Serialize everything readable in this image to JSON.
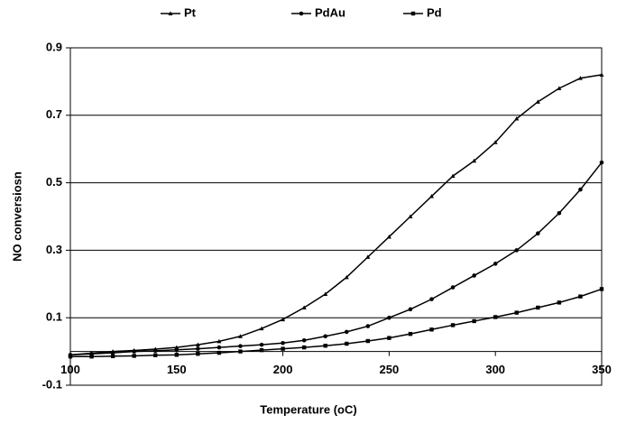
{
  "chart_data": {
    "type": "line",
    "xlabel": "Temperature (oC)",
    "ylabel": "NO conversiosn",
    "x": [
      100,
      110,
      120,
      130,
      140,
      150,
      160,
      170,
      180,
      190,
      200,
      210,
      220,
      230,
      240,
      250,
      260,
      270,
      280,
      290,
      300,
      310,
      320,
      330,
      340,
      350
    ],
    "series": [
      {
        "name": "Pt",
        "color": "#000000",
        "values": [
          -0.01,
          -0.005,
          0,
          0.003,
          0.007,
          0.012,
          0.02,
          0.03,
          0.045,
          0.068,
          0.095,
          0.13,
          0.17,
          0.22,
          0.28,
          0.34,
          0.4,
          0.46,
          0.52,
          0.565,
          0.62,
          0.69,
          0.74,
          0.78,
          0.81,
          0.82
        ]
      },
      {
        "name": "PdAu",
        "color": "#000000",
        "values": [
          -0.01,
          -0.007,
          -0.004,
          0,
          0.002,
          0.005,
          0.008,
          0.012,
          0.016,
          0.02,
          0.025,
          0.033,
          0.045,
          0.058,
          0.075,
          0.1,
          0.125,
          0.155,
          0.19,
          0.225,
          0.26,
          0.3,
          0.35,
          0.41,
          0.48,
          0.56
        ]
      },
      {
        "name": "Pd",
        "color": "#000000",
        "values": [
          -0.015,
          -0.015,
          -0.014,
          -0.013,
          -0.011,
          -0.01,
          -0.007,
          -0.004,
          0,
          0.004,
          0.008,
          0.012,
          0.017,
          0.023,
          0.031,
          0.04,
          0.052,
          0.065,
          0.078,
          0.09,
          0.102,
          0.115,
          0.13,
          0.145,
          0.163,
          0.185
        ]
      }
    ],
    "xlim": [
      100,
      350
    ],
    "xticks": [
      100,
      150,
      200,
      250,
      300,
      350
    ],
    "ylim": [
      -0.1,
      0.9
    ],
    "yticks": [
      -0.1,
      0.1,
      0.3,
      0.5,
      0.7,
      0.9
    ],
    "grid": true,
    "legend": "top"
  }
}
